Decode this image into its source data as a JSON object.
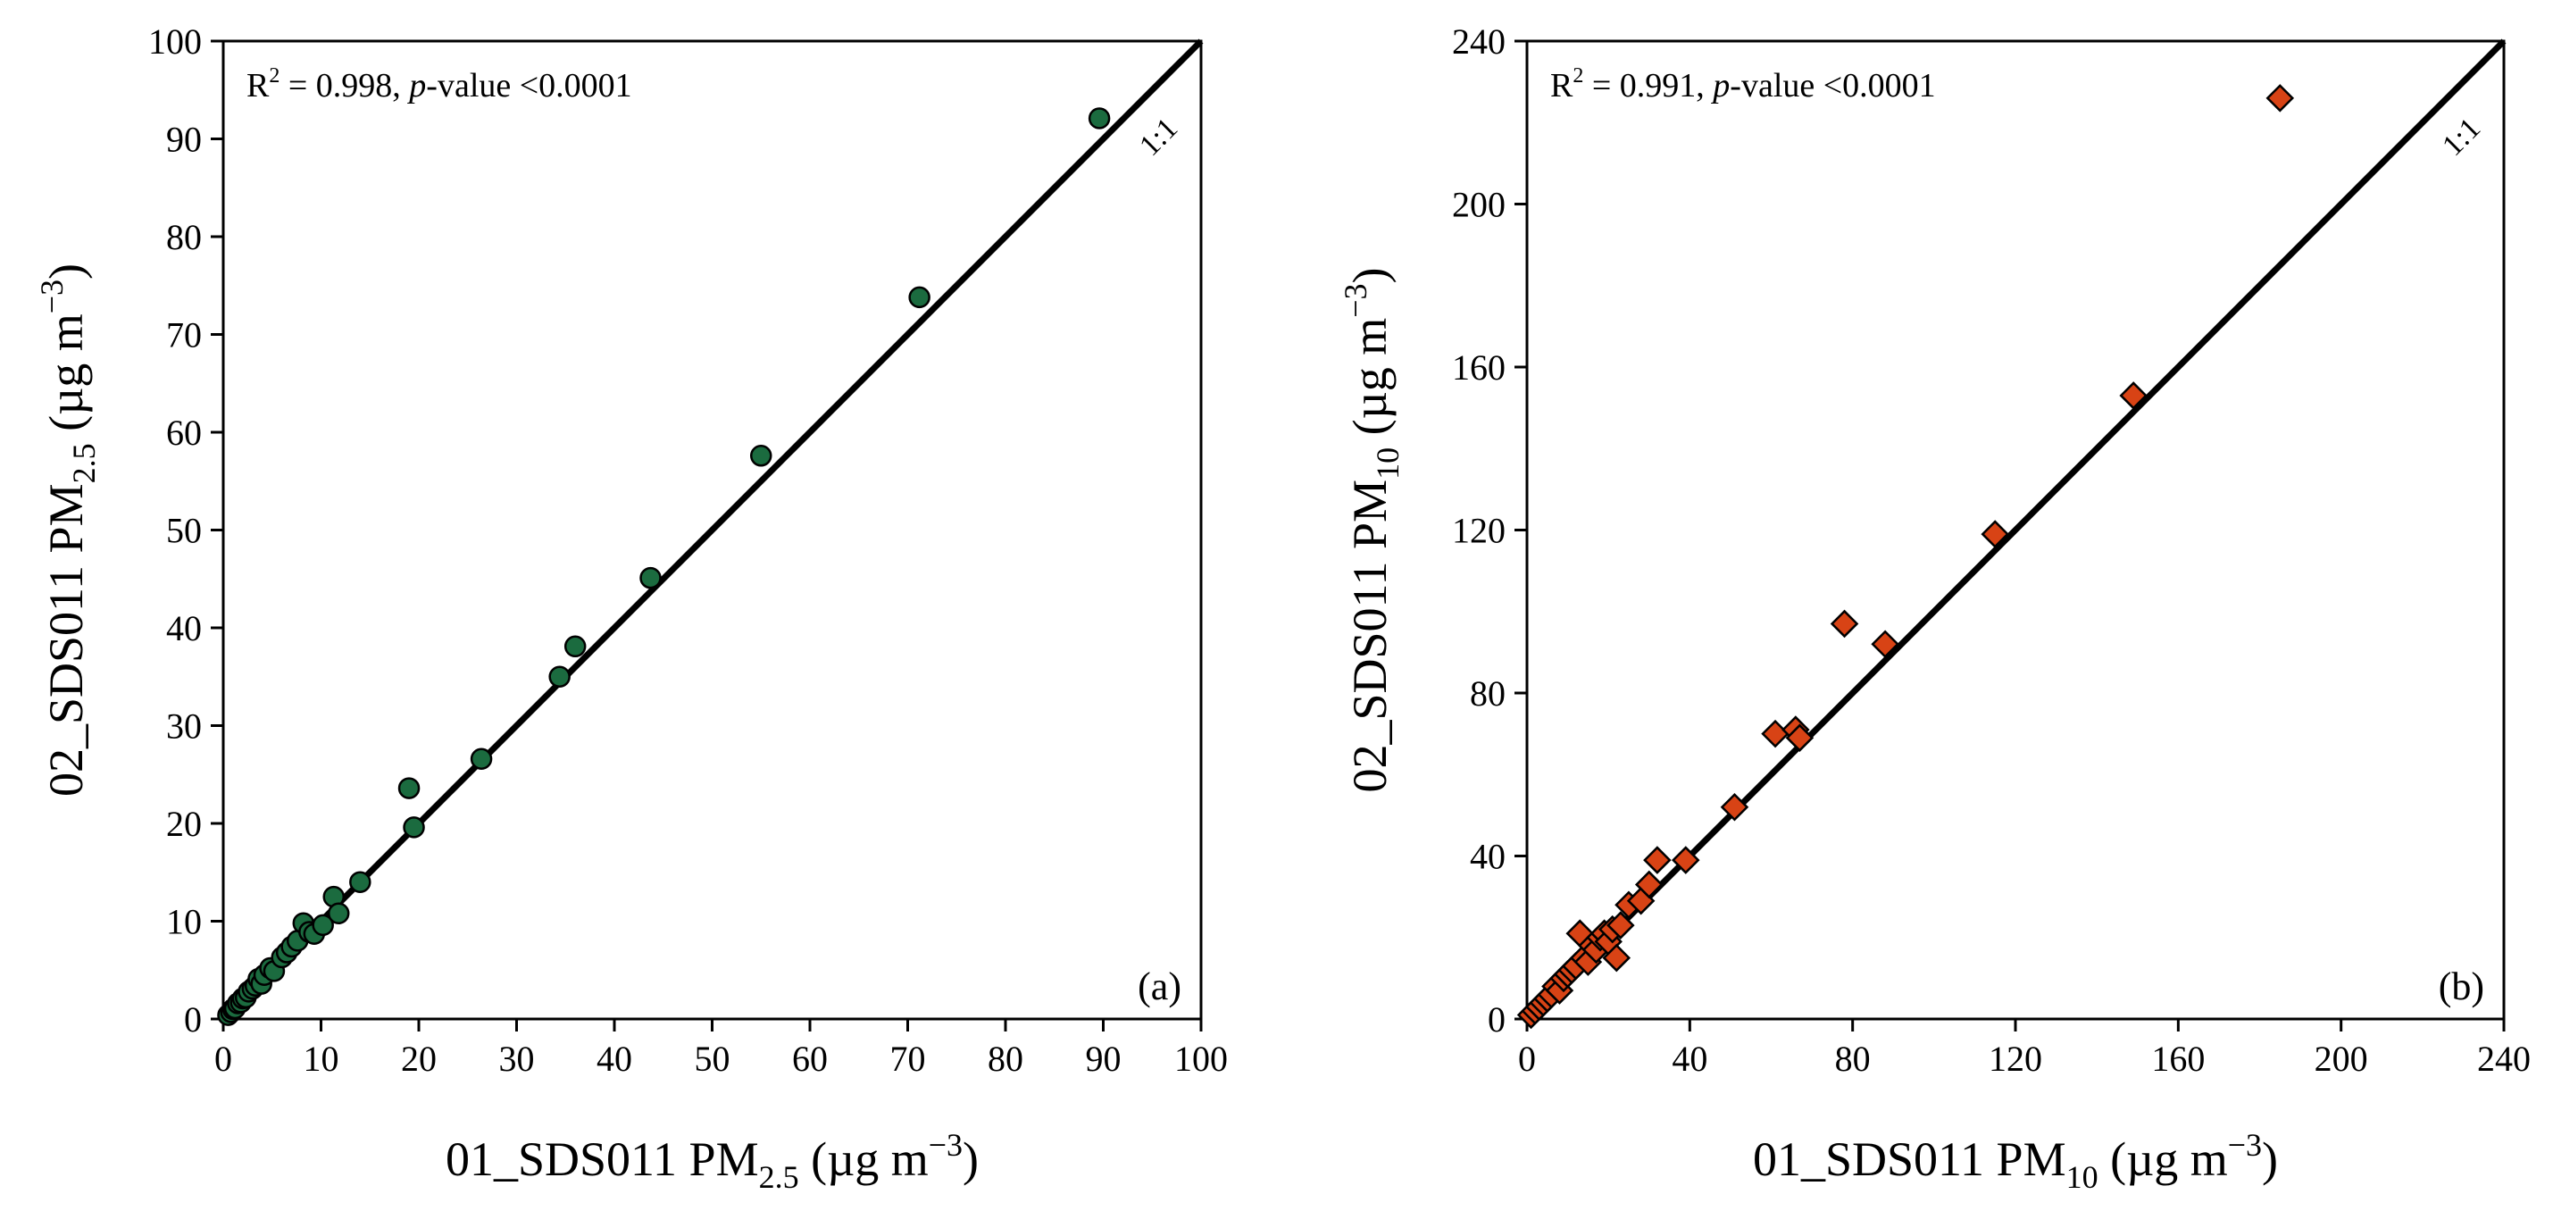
{
  "colors": {
    "pm25_marker": "#1b6b3f",
    "pm10_marker": "#d84315",
    "marker_edge": "#000000",
    "line": "#000000"
  },
  "chart_data": [
    {
      "type": "scatter",
      "panel_label": "(a)",
      "stat_text": {
        "r2_prefix": "R",
        "r2_sup": "2",
        "r2_value": " = 0.998, ",
        "p_italic": "p",
        "p_rest": "-value <0.0001"
      },
      "xlabel": {
        "pre": "01_SDS011 PM",
        "sub": "2.5",
        "post": " (µg m",
        "sup": "−3",
        "close": ")"
      },
      "ylabel": {
        "pre": "02_SDS011 PM",
        "sub": "2.5",
        "post": " (µg m",
        "sup": "−3",
        "close": ")"
      },
      "xlim": [
        0,
        100
      ],
      "ylim": [
        0,
        100
      ],
      "xticks": [
        "0",
        "10",
        "20",
        "30",
        "40",
        "50",
        "60",
        "70",
        "80",
        "90",
        "100"
      ],
      "yticks": [
        "0",
        "10",
        "20",
        "30",
        "40",
        "50",
        "60",
        "70",
        "80",
        "90",
        "100"
      ],
      "ref_line_label": "1:1",
      "marker": "circle",
      "points": [
        [
          0.5,
          0.4
        ],
        [
          0.8,
          0.7
        ],
        [
          1.0,
          1.0
        ],
        [
          1.2,
          1.1
        ],
        [
          1.5,
          1.6
        ],
        [
          1.8,
          1.7
        ],
        [
          2.0,
          2.1
        ],
        [
          2.3,
          2.2
        ],
        [
          2.6,
          2.8
        ],
        [
          3.0,
          3.1
        ],
        [
          3.3,
          3.4
        ],
        [
          3.6,
          4.1
        ],
        [
          3.9,
          3.6
        ],
        [
          4.2,
          4.5
        ],
        [
          4.8,
          5.2
        ],
        [
          5.2,
          4.9
        ],
        [
          6.0,
          6.3
        ],
        [
          6.5,
          6.8
        ],
        [
          7.0,
          7.4
        ],
        [
          7.6,
          8.0
        ],
        [
          8.2,
          9.8
        ],
        [
          8.8,
          8.9
        ],
        [
          9.3,
          8.7
        ],
        [
          10.2,
          9.6
        ],
        [
          11.3,
          12.5
        ],
        [
          11.8,
          10.8
        ],
        [
          14.0,
          14.0
        ],
        [
          19.0,
          23.6
        ],
        [
          19.5,
          19.6
        ],
        [
          26.4,
          26.6
        ],
        [
          34.4,
          35.0
        ],
        [
          36.0,
          38.1
        ],
        [
          43.7,
          45.1
        ],
        [
          55.0,
          57.6
        ],
        [
          71.2,
          73.8
        ],
        [
          89.6,
          92.1
        ]
      ]
    },
    {
      "type": "scatter",
      "panel_label": "(b)",
      "stat_text": {
        "r2_prefix": "R",
        "r2_sup": "2",
        "r2_value": " = 0.991, ",
        "p_italic": "p",
        "p_rest": "-value <0.0001"
      },
      "xlabel": {
        "pre": "01_SDS011 PM",
        "sub": "10",
        "post": " (µg m",
        "sup": "−3",
        "close": ")"
      },
      "ylabel": {
        "pre": "02_SDS011 PM",
        "sub": "10",
        "post": " (µg m",
        "sup": "−3",
        "close": ")"
      },
      "xlim": [
        0,
        240
      ],
      "ylim": [
        0,
        240
      ],
      "xticks": [
        "0",
        "40",
        "80",
        "120",
        "160",
        "200",
        "240"
      ],
      "yticks": [
        "0",
        "40",
        "80",
        "120",
        "160",
        "200",
        "240"
      ],
      "ref_line_label": "1:1",
      "marker": "diamond",
      "points": [
        [
          1,
          1
        ],
        [
          2,
          2
        ],
        [
          3,
          3
        ],
        [
          4,
          4
        ],
        [
          5,
          5
        ],
        [
          6,
          6
        ],
        [
          7,
          8
        ],
        [
          8,
          7
        ],
        [
          9,
          10
        ],
        [
          10,
          11
        ],
        [
          11,
          12
        ],
        [
          12,
          13
        ],
        [
          13,
          21
        ],
        [
          14,
          15
        ],
        [
          15,
          14
        ],
        [
          16,
          18
        ],
        [
          17,
          17
        ],
        [
          18,
          20
        ],
        [
          19,
          21
        ],
        [
          20,
          19
        ],
        [
          21,
          22
        ],
        [
          22,
          15
        ],
        [
          23,
          23
        ],
        [
          25,
          28
        ],
        [
          28,
          29
        ],
        [
          30,
          33
        ],
        [
          32,
          39
        ],
        [
          39,
          39
        ],
        [
          51,
          52
        ],
        [
          61,
          70
        ],
        [
          66,
          71
        ],
        [
          67,
          69
        ],
        [
          78,
          97
        ],
        [
          88,
          92
        ],
        [
          115,
          119
        ],
        [
          149,
          153
        ],
        [
          185,
          226
        ]
      ]
    }
  ]
}
